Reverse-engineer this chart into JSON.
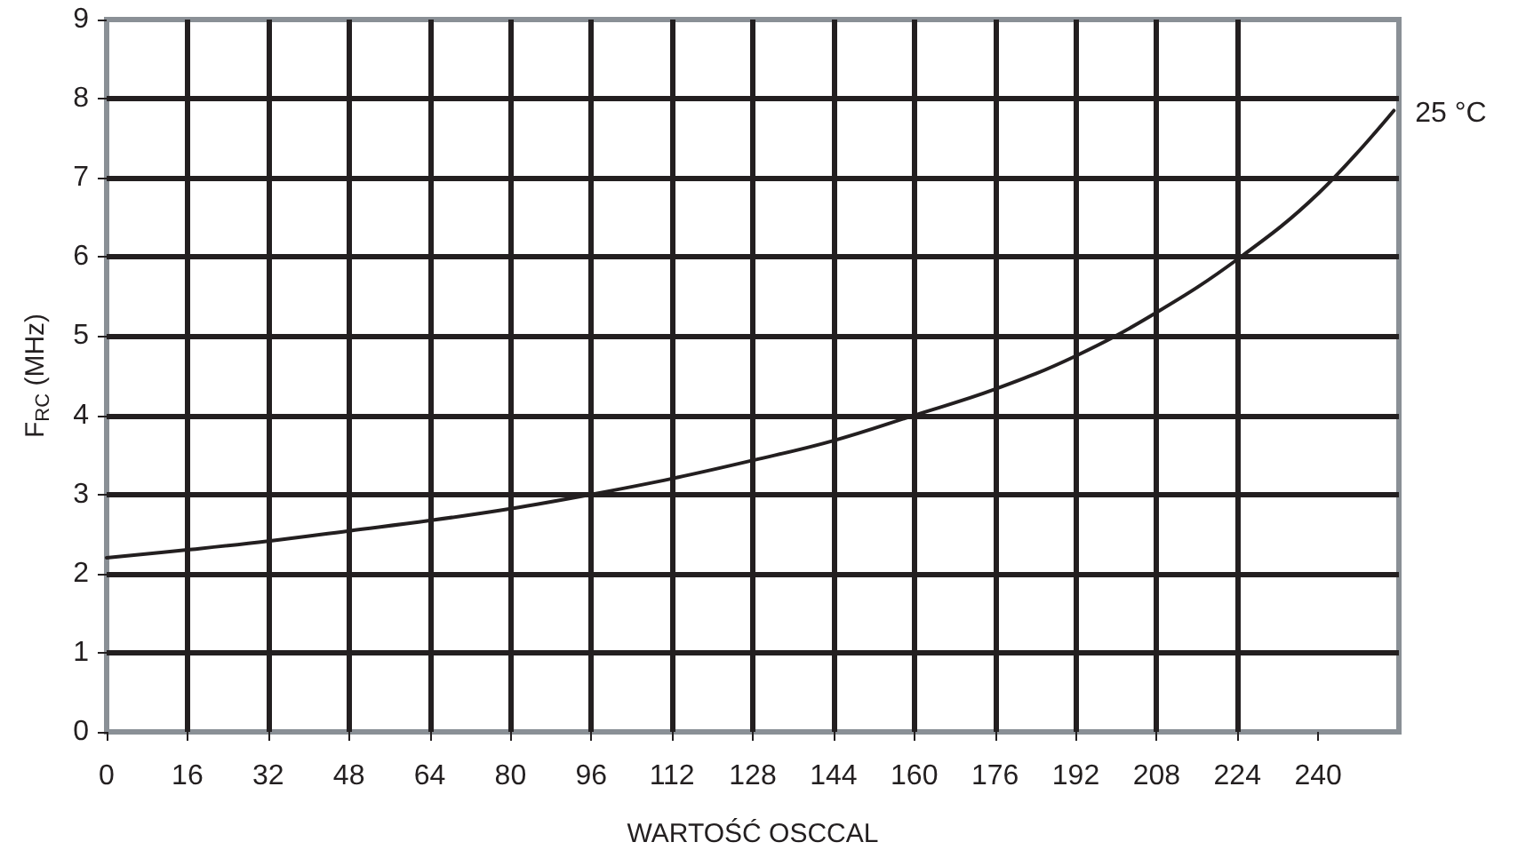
{
  "chart_data": {
    "type": "line",
    "xlabel": "WARTOŚĆ OSCCAL",
    "ylabel": "F$_{RC}$ (MHz)",
    "x": [
      0,
      16,
      32,
      48,
      64,
      80,
      96,
      112,
      128,
      144,
      160,
      176,
      192,
      208,
      224,
      240,
      255
    ],
    "series": [
      {
        "name": "25 °C",
        "color": "#231f20",
        "values": [
          2.2,
          2.3,
          2.41,
          2.54,
          2.67,
          2.82,
          3.0,
          3.2,
          3.43,
          3.68,
          4.0,
          4.33,
          4.75,
          5.3,
          5.97,
          6.8,
          7.85
        ]
      }
    ],
    "xlim": [
      0,
      256
    ],
    "xticks": [
      0,
      16,
      32,
      48,
      64,
      80,
      96,
      112,
      128,
      144,
      160,
      176,
      192,
      208,
      224,
      240
    ],
    "ylim": [
      0,
      9
    ],
    "yticks": [
      0,
      1,
      2,
      3,
      4,
      5,
      6,
      7,
      8,
      9
    ],
    "grid": true,
    "legend": false,
    "marker": "none",
    "line_style": "solid"
  }
}
